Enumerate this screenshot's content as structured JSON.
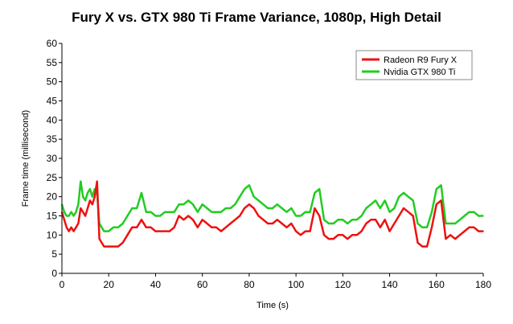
{
  "chart_data": {
    "type": "line",
    "title": "Fury X vs. GTX 980 Ti Frame Variance, 1080p, High Detail",
    "xlabel": "Time (s)",
    "ylabel": "Frame time (millisecond)",
    "xlim": [
      0,
      180
    ],
    "ylim": [
      0,
      60
    ],
    "xticks": [
      0,
      20,
      40,
      60,
      80,
      100,
      120,
      140,
      160,
      180
    ],
    "yticks": [
      0,
      5,
      10,
      15,
      20,
      25,
      30,
      35,
      40,
      45,
      50,
      55,
      60
    ],
    "grid": false,
    "legend_position": "top-right",
    "series": [
      {
        "name": "Radeon R9 Fury X",
        "color": "#ee1111",
        "x": [
          0,
          1,
          2,
          3,
          4,
          5,
          6,
          7,
          8,
          9,
          10,
          11,
          12,
          13,
          14,
          15,
          16,
          17,
          18,
          19,
          20,
          22,
          24,
          26,
          28,
          30,
          32,
          34,
          36,
          38,
          40,
          42,
          44,
          46,
          48,
          50,
          52,
          54,
          56,
          58,
          60,
          62,
          64,
          66,
          68,
          70,
          72,
          74,
          76,
          78,
          80,
          82,
          84,
          86,
          88,
          90,
          92,
          94,
          96,
          98,
          100,
          102,
          104,
          106,
          108,
          110,
          112,
          114,
          116,
          118,
          120,
          122,
          124,
          126,
          128,
          130,
          132,
          134,
          136,
          138,
          140,
          142,
          144,
          146,
          148,
          150,
          152,
          154,
          156,
          158,
          160,
          162,
          164,
          166,
          168,
          170,
          172,
          174,
          176,
          178,
          180
        ],
        "y": [
          16,
          14,
          12,
          11,
          12,
          11,
          12,
          13,
          17,
          16,
          15,
          17,
          19,
          18,
          20,
          24,
          9,
          8,
          7,
          7,
          7,
          7,
          7,
          8,
          10,
          12,
          12,
          14,
          12,
          12,
          11,
          11,
          11,
          11,
          12,
          15,
          14,
          15,
          14,
          12,
          14,
          13,
          12,
          12,
          11,
          12,
          13,
          14,
          15,
          17,
          18,
          17,
          15,
          14,
          13,
          13,
          14,
          13,
          12,
          13,
          11,
          10,
          11,
          11,
          17,
          15,
          10,
          9,
          9,
          10,
          10,
          9,
          10,
          10,
          11,
          13,
          14,
          14,
          12,
          14,
          11,
          13,
          15,
          17,
          16,
          15,
          8,
          7,
          7,
          12,
          18,
          19,
          9,
          10,
          9,
          10,
          11,
          12,
          12,
          11,
          11
        ]
      },
      {
        "name": "Nvidia GTX 980 Ti",
        "color": "#22cc22",
        "x": [
          0,
          1,
          2,
          3,
          4,
          5,
          6,
          7,
          8,
          9,
          10,
          11,
          12,
          13,
          14,
          15,
          16,
          17,
          18,
          19,
          20,
          22,
          24,
          26,
          28,
          30,
          32,
          34,
          36,
          38,
          40,
          42,
          44,
          46,
          48,
          50,
          52,
          54,
          56,
          58,
          60,
          62,
          64,
          66,
          68,
          70,
          72,
          74,
          76,
          78,
          80,
          82,
          84,
          86,
          88,
          90,
          92,
          94,
          96,
          98,
          100,
          102,
          104,
          106,
          108,
          110,
          112,
          114,
          116,
          118,
          120,
          122,
          124,
          126,
          128,
          130,
          132,
          134,
          136,
          138,
          140,
          142,
          144,
          146,
          148,
          150,
          152,
          154,
          156,
          158,
          160,
          162,
          164,
          166,
          168,
          170,
          172,
          174,
          176,
          178,
          180
        ],
        "y": [
          18,
          16,
          15,
          15,
          16,
          15,
          16,
          18,
          24,
          20,
          19,
          21,
          22,
          20,
          22,
          21,
          13,
          12,
          11,
          11,
          11,
          12,
          12,
          13,
          15,
          17,
          17,
          21,
          16,
          16,
          15,
          15,
          16,
          16,
          16,
          18,
          18,
          19,
          18,
          16,
          18,
          17,
          16,
          16,
          16,
          17,
          17,
          18,
          20,
          22,
          23,
          20,
          19,
          18,
          17,
          17,
          18,
          17,
          16,
          17,
          15,
          15,
          16,
          16,
          21,
          22,
          14,
          13,
          13,
          14,
          14,
          13,
          14,
          14,
          15,
          17,
          18,
          19,
          17,
          19,
          16,
          17,
          20,
          21,
          20,
          19,
          13,
          12,
          12,
          16,
          22,
          23,
          13,
          13,
          13,
          14,
          15,
          16,
          16,
          15,
          15
        ]
      }
    ]
  }
}
